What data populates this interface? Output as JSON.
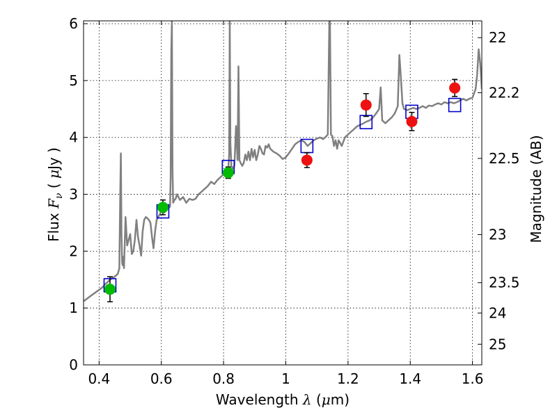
{
  "chart_data": {
    "type": "scatter",
    "xlabel_text": "Wavelength  ",
    "xlabel_symbol": "λ",
    "xlabel_unit": " (",
    "xlabel_mu": "μ",
    "xlabel_unit_end": "m)",
    "ylabel_text": "Flux  ",
    "ylabel_symbol": "F",
    "ylabel_sub": "ν",
    "ylabel_unit": "  ( ",
    "ylabel_mu": "μ",
    "ylabel_unit_end": "Jy )",
    "y2label": "Magnitude (AB)",
    "xlim": [
      0.35,
      1.63
    ],
    "ylim": [
      0,
      6.05
    ],
    "x_ticks": [
      0.4,
      0.6,
      0.8,
      1.0,
      1.2,
      1.4,
      1.6
    ],
    "x_tick_labels": [
      "0.4",
      "0.6",
      "0.8",
      "1",
      "1.2",
      "1.4",
      "1.6"
    ],
    "y_ticks": [
      0,
      1,
      2,
      3,
      4,
      5,
      6
    ],
    "y_tick_labels": [
      "0",
      "1",
      "2",
      "3",
      "4",
      "5",
      "6"
    ],
    "y2_ticks": [
      22,
      22.2,
      22.5,
      23,
      23.5,
      24,
      25
    ],
    "y2_tick_labels": [
      "22",
      "22.2",
      "22.5",
      "23",
      "23.5",
      "24",
      "25"
    ],
    "grid": true,
    "colors": {
      "model_spectrum": "#808080",
      "optical_points": "#00bb00",
      "nir_points": "#ee1111",
      "model_flux_boxes": "#0000cc",
      "error_bars": "#000000"
    },
    "series": [
      {
        "kind": "line",
        "points": [
          [
            0.35,
            1.12
          ],
          [
            0.36,
            1.16
          ],
          [
            0.37,
            1.2
          ],
          [
            0.38,
            1.24
          ],
          [
            0.39,
            1.28
          ],
          [
            0.4,
            1.32
          ],
          [
            0.41,
            1.36
          ],
          [
            0.42,
            1.42
          ],
          [
            0.43,
            1.47
          ],
          [
            0.44,
            1.52
          ],
          [
            0.45,
            1.55
          ],
          [
            0.46,
            1.6
          ],
          [
            0.465,
            1.7
          ],
          [
            0.468,
            3.0
          ],
          [
            0.47,
            3.72
          ],
          [
            0.472,
            2.3
          ],
          [
            0.474,
            1.8
          ],
          [
            0.476,
            1.75
          ],
          [
            0.478,
            1.9
          ],
          [
            0.48,
            1.7
          ],
          [
            0.485,
            2.6
          ],
          [
            0.49,
            2.1
          ],
          [
            0.495,
            2.2
          ],
          [
            0.5,
            2.3
          ],
          [
            0.505,
            1.95
          ],
          [
            0.51,
            2.0
          ],
          [
            0.515,
            2.2
          ],
          [
            0.52,
            2.55
          ],
          [
            0.525,
            2.25
          ],
          [
            0.53,
            2.1
          ],
          [
            0.535,
            1.92
          ],
          [
            0.54,
            2.35
          ],
          [
            0.545,
            2.55
          ],
          [
            0.55,
            2.6
          ],
          [
            0.555,
            2.58
          ],
          [
            0.56,
            2.55
          ],
          [
            0.565,
            2.5
          ],
          [
            0.57,
            2.25
          ],
          [
            0.575,
            2.05
          ],
          [
            0.58,
            2.35
          ],
          [
            0.585,
            2.55
          ],
          [
            0.59,
            2.6
          ],
          [
            0.595,
            2.65
          ],
          [
            0.6,
            2.7
          ],
          [
            0.61,
            2.68
          ],
          [
            0.62,
            2.75
          ],
          [
            0.628,
            2.78
          ],
          [
            0.63,
            3.3
          ],
          [
            0.632,
            5.5
          ],
          [
            0.634,
            6.05
          ],
          [
            0.636,
            3.4
          ],
          [
            0.638,
            2.85
          ],
          [
            0.642,
            2.9
          ],
          [
            0.646,
            2.92
          ],
          [
            0.65,
            3.0
          ],
          [
            0.66,
            2.9
          ],
          [
            0.67,
            2.95
          ],
          [
            0.68,
            2.85
          ],
          [
            0.69,
            2.92
          ],
          [
            0.7,
            2.9
          ],
          [
            0.71,
            2.92
          ],
          [
            0.72,
            3.0
          ],
          [
            0.73,
            3.05
          ],
          [
            0.74,
            3.1
          ],
          [
            0.75,
            3.15
          ],
          [
            0.76,
            3.22
          ],
          [
            0.77,
            3.18
          ],
          [
            0.78,
            3.25
          ],
          [
            0.79,
            3.3
          ],
          [
            0.8,
            3.35
          ],
          [
            0.81,
            3.38
          ],
          [
            0.815,
            3.42
          ],
          [
            0.818,
            3.7
          ],
          [
            0.82,
            6.05
          ],
          [
            0.822,
            3.9
          ],
          [
            0.825,
            3.5
          ],
          [
            0.83,
            3.45
          ],
          [
            0.835,
            3.5
          ],
          [
            0.84,
            4.2
          ],
          [
            0.845,
            3.6
          ],
          [
            0.848,
            5.25
          ],
          [
            0.851,
            3.6
          ],
          [
            0.855,
            3.55
          ],
          [
            0.86,
            3.5
          ],
          [
            0.865,
            3.55
          ],
          [
            0.87,
            3.7
          ],
          [
            0.875,
            3.6
          ],
          [
            0.88,
            3.75
          ],
          [
            0.885,
            3.6
          ],
          [
            0.89,
            3.8
          ],
          [
            0.895,
            3.65
          ],
          [
            0.9,
            3.78
          ],
          [
            0.905,
            3.6
          ],
          [
            0.91,
            3.7
          ],
          [
            0.915,
            3.85
          ],
          [
            0.92,
            3.8
          ],
          [
            0.925,
            3.72
          ],
          [
            0.93,
            3.7
          ],
          [
            0.935,
            3.85
          ],
          [
            0.94,
            3.82
          ],
          [
            0.945,
            3.88
          ],
          [
            0.95,
            3.8
          ],
          [
            0.96,
            3.75
          ],
          [
            0.97,
            3.72
          ],
          [
            0.98,
            3.68
          ],
          [
            0.99,
            3.62
          ],
          [
            1.0,
            3.65
          ],
          [
            1.01,
            3.72
          ],
          [
            1.02,
            3.8
          ],
          [
            1.03,
            3.88
          ],
          [
            1.04,
            3.92
          ],
          [
            1.05,
            3.95
          ],
          [
            1.06,
            3.92
          ],
          [
            1.07,
            3.85
          ],
          [
            1.08,
            3.9
          ],
          [
            1.09,
            3.95
          ],
          [
            1.1,
            3.98
          ],
          [
            1.11,
            4.0
          ],
          [
            1.12,
            3.97
          ],
          [
            1.13,
            4.02
          ],
          [
            1.135,
            4.05
          ],
          [
            1.14,
            6.05
          ],
          [
            1.142,
            6.05
          ],
          [
            1.145,
            4.05
          ],
          [
            1.15,
            4.02
          ],
          [
            1.155,
            3.85
          ],
          [
            1.16,
            3.95
          ],
          [
            1.165,
            3.8
          ],
          [
            1.17,
            3.95
          ],
          [
            1.18,
            3.85
          ],
          [
            1.19,
            4.0
          ],
          [
            1.2,
            4.05
          ],
          [
            1.21,
            4.1
          ],
          [
            1.22,
            4.15
          ],
          [
            1.23,
            4.2
          ],
          [
            1.24,
            4.22
          ],
          [
            1.25,
            4.25
          ],
          [
            1.26,
            4.28
          ],
          [
            1.27,
            4.3
          ],
          [
            1.28,
            4.35
          ],
          [
            1.29,
            4.42
          ],
          [
            1.3,
            4.5
          ],
          [
            1.305,
            4.88
          ],
          [
            1.31,
            4.3
          ],
          [
            1.32,
            4.25
          ],
          [
            1.33,
            4.3
          ],
          [
            1.34,
            4.35
          ],
          [
            1.35,
            4.42
          ],
          [
            1.36,
            4.55
          ],
          [
            1.365,
            5.45
          ],
          [
            1.37,
            5.05
          ],
          [
            1.375,
            4.6
          ],
          [
            1.38,
            4.5
          ],
          [
            1.39,
            4.48
          ],
          [
            1.4,
            4.5
          ],
          [
            1.41,
            4.52
          ],
          [
            1.42,
            4.5
          ],
          [
            1.43,
            4.52
          ],
          [
            1.44,
            4.55
          ],
          [
            1.45,
            4.52
          ],
          [
            1.46,
            4.56
          ],
          [
            1.47,
            4.55
          ],
          [
            1.48,
            4.58
          ],
          [
            1.49,
            4.6
          ],
          [
            1.5,
            4.58
          ],
          [
            1.51,
            4.62
          ],
          [
            1.52,
            4.6
          ],
          [
            1.53,
            4.62
          ],
          [
            1.54,
            4.6
          ],
          [
            1.55,
            4.62
          ],
          [
            1.56,
            4.65
          ],
          [
            1.57,
            4.68
          ],
          [
            1.58,
            4.65
          ],
          [
            1.59,
            4.68
          ],
          [
            1.6,
            4.7
          ],
          [
            1.61,
            4.85
          ],
          [
            1.615,
            5.1
          ],
          [
            1.62,
            5.55
          ],
          [
            1.625,
            5.3
          ],
          [
            1.63,
            4.85
          ]
        ]
      },
      {
        "kind": "markers",
        "marker": "square",
        "points": [
          [
            0.435,
            1.4
          ],
          [
            0.605,
            2.7
          ],
          [
            0.815,
            3.48
          ],
          [
            1.068,
            3.85
          ],
          [
            1.258,
            4.27
          ],
          [
            1.405,
            4.45
          ],
          [
            1.543,
            4.57
          ]
        ]
      },
      {
        "kind": "markers",
        "marker": "circle",
        "color_key": "optical_points",
        "points": [
          [
            0.435,
            1.33
          ],
          [
            0.605,
            2.77
          ],
          [
            0.815,
            3.38
          ]
        ],
        "errors": [
          0.22,
          0.13,
          0.1
        ]
      },
      {
        "kind": "markers",
        "marker": "circle",
        "color_key": "nir_points",
        "points": [
          [
            1.068,
            3.6
          ],
          [
            1.258,
            4.57
          ],
          [
            1.405,
            4.28
          ],
          [
            1.543,
            4.87
          ]
        ],
        "errors": [
          0.13,
          0.2,
          0.16,
          0.15
        ]
      }
    ]
  }
}
